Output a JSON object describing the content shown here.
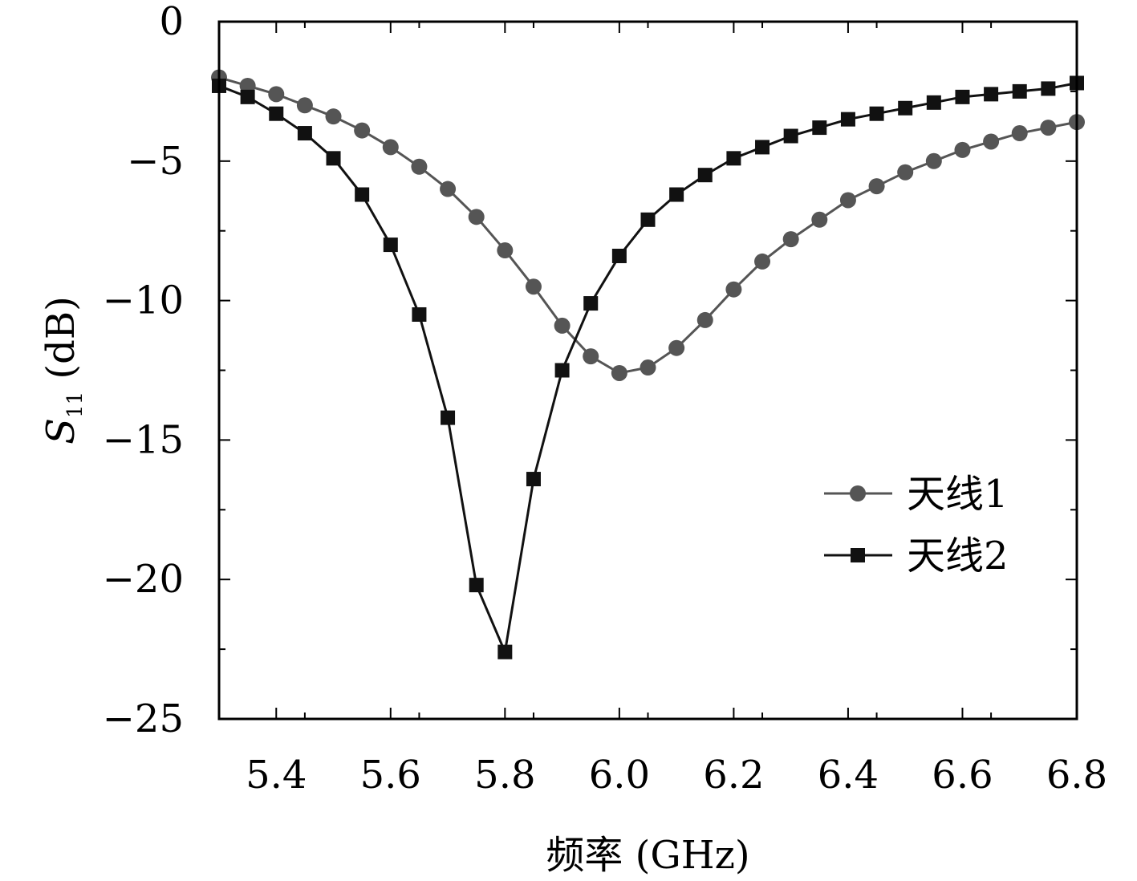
{
  "chart_data": {
    "type": "line",
    "xlabel": "频率 (GHz)",
    "ylabel_main": "S",
    "ylabel_sub": "11",
    "ylabel_unit": " (dB)",
    "xlim": [
      5.3,
      6.8
    ],
    "ylim": [
      -25,
      0
    ],
    "xticks": [
      5.4,
      5.6,
      5.8,
      6.0,
      6.2,
      6.4,
      6.6,
      6.8
    ],
    "xtick_labels": [
      "5.4",
      "5.6",
      "5.8",
      "6.0",
      "6.2",
      "6.4",
      "6.6",
      "6.8"
    ],
    "yticks": [
      0,
      -5,
      -10,
      -15,
      -20,
      -25
    ],
    "ytick_labels": [
      "0",
      "−5",
      "−10",
      "−15",
      "−20",
      "−25"
    ],
    "grid": false,
    "legend_position": "right",
    "x": [
      5.3,
      5.35,
      5.4,
      5.45,
      5.5,
      5.55,
      5.6,
      5.65,
      5.7,
      5.75,
      5.8,
      5.85,
      5.9,
      5.95,
      6.0,
      6.05,
      6.1,
      6.15,
      6.2,
      6.25,
      6.3,
      6.35,
      6.4,
      6.45,
      6.5,
      6.55,
      6.6,
      6.65,
      6.7,
      6.75,
      6.8
    ],
    "series": [
      {
        "name": "天线1",
        "marker": "circle",
        "color": "#555555",
        "values": [
          -2.0,
          -2.3,
          -2.6,
          -3.0,
          -3.4,
          -3.9,
          -4.5,
          -5.2,
          -6.0,
          -7.0,
          -8.2,
          -9.5,
          -10.9,
          -12.0,
          -12.6,
          -12.4,
          -11.7,
          -10.7,
          -9.6,
          -8.6,
          -7.8,
          -7.1,
          -6.4,
          -5.9,
          -5.4,
          -5.0,
          -4.6,
          -4.3,
          -4.0,
          -3.8,
          -3.6
        ]
      },
      {
        "name": "天线2",
        "marker": "square",
        "color": "#111111",
        "values": [
          -2.3,
          -2.7,
          -3.3,
          -4.0,
          -4.9,
          -6.2,
          -8.0,
          -10.5,
          -14.2,
          -20.2,
          -22.6,
          -16.4,
          -12.5,
          -10.1,
          -8.4,
          -7.1,
          -6.2,
          -5.5,
          -4.9,
          -4.5,
          -4.1,
          -3.8,
          -3.5,
          -3.3,
          -3.1,
          -2.9,
          -2.7,
          -2.6,
          -2.5,
          -2.4,
          -2.2
        ]
      }
    ]
  }
}
